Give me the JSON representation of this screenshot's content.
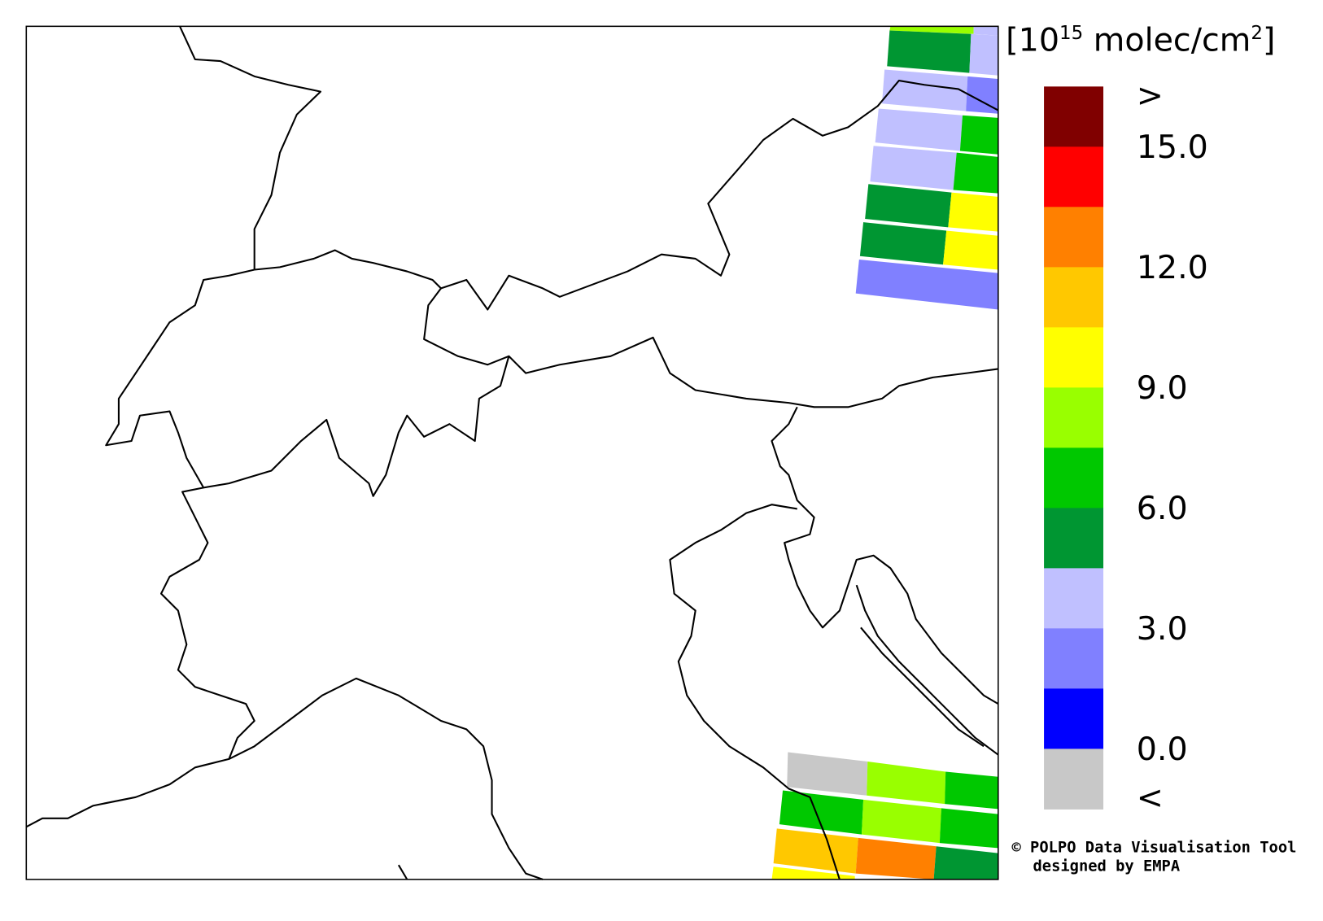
{
  "colorbar": {
    "unit": {
      "open": "[",
      "base": "10",
      "exponent": "15",
      "text": " molec/cm",
      "text_exponent": "2",
      "close": "]"
    },
    "colors": [
      "#800000",
      "#ff0000",
      "#ff8000",
      "#ffc800",
      "#ffff00",
      "#99ff00",
      "#00c800",
      "#009632",
      "#c0c0ff",
      "#8080ff",
      "#0000ff",
      "#c8c8c8"
    ],
    "labels": [
      ">",
      "15.0",
      "12.0",
      "9.0",
      "6.0",
      "3.0",
      "0.0",
      "<"
    ]
  },
  "credits": [
    "© POLPO Data Visualisation Tool",
    "designed by EMPA"
  ]
}
